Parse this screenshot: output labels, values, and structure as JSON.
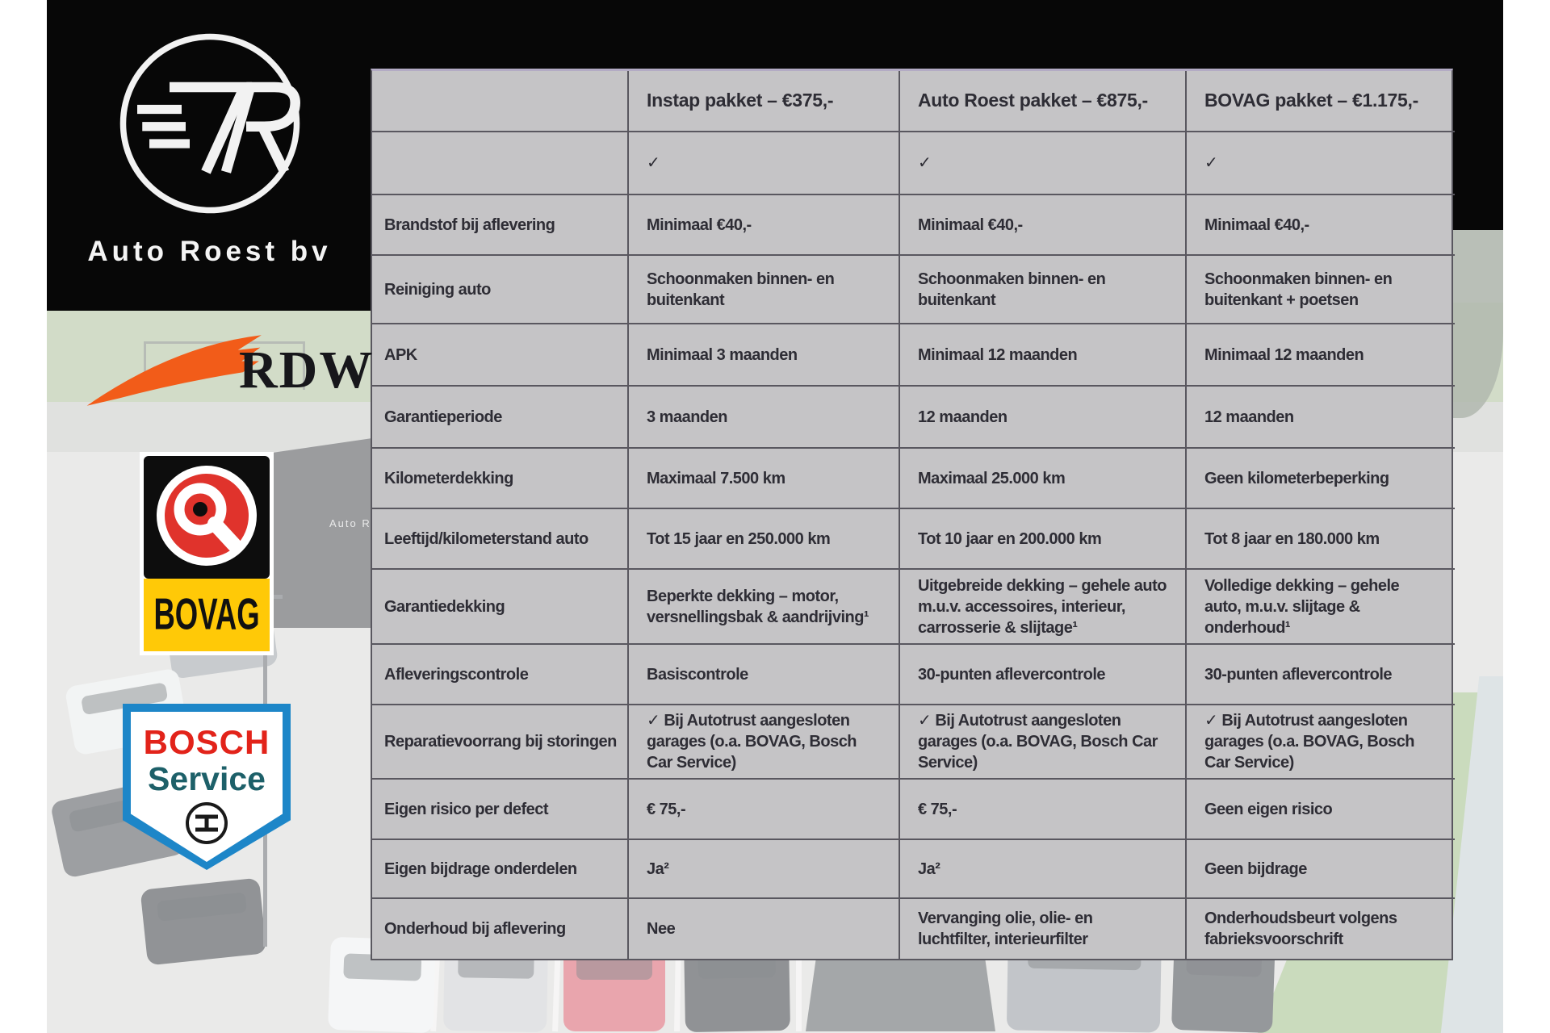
{
  "brand": {
    "name": "Auto Roest bv"
  },
  "logos": {
    "rdw": "RDW",
    "bovag": "BOVAG",
    "bosch_line1": "BOSCH",
    "bosch_line2": "Service"
  },
  "photo": {
    "building_sign": "Auto Roest"
  },
  "table": {
    "columns": [
      "",
      "Instap pakket – €375,-",
      "Auto Roest pakket – €875,-",
      "BOVAG pakket – €1.175,-"
    ],
    "rows": [
      {
        "label": "",
        "cells": [
          "✓",
          "✓",
          "✓"
        ]
      },
      {
        "label": "Brandstof bij aflevering",
        "cells": [
          "Minimaal €40,-",
          "Minimaal €40,-",
          "Minimaal €40,-"
        ]
      },
      {
        "label": "Reiniging auto",
        "cells": [
          "Schoonmaken binnen- en buitenkant",
          "Schoonmaken binnen- en buitenkant",
          "Schoonmaken binnen- en buitenkant + poetsen"
        ]
      },
      {
        "label": "APK",
        "cells": [
          "Minimaal 3 maanden",
          "Minimaal 12 maanden",
          "Minimaal 12 maanden"
        ]
      },
      {
        "label": "Garantieperiode",
        "cells": [
          "3 maanden",
          "12 maanden",
          "12 maanden"
        ]
      },
      {
        "label": "Kilometerdekking",
        "cells": [
          "Maximaal 7.500 km",
          "Maximaal 25.000 km",
          "Geen kilometerbeperking"
        ]
      },
      {
        "label": "Leeftijd/kilometerstand auto",
        "cells": [
          "Tot 15 jaar en 250.000 km",
          "Tot 10 jaar en 200.000 km",
          "Tot 8 jaar en 180.000 km"
        ]
      },
      {
        "label": "Garantiedekking",
        "cells": [
          "Beperkte dekking – motor, versnellingsbak & aandrijving¹",
          "Uitgebreide dekking – gehele auto m.u.v. accessoires, interieur, carrosserie & slijtage¹",
          "Volledige dekking – gehele auto, m.u.v. slijtage & onderhoud¹"
        ]
      },
      {
        "label": "Afleveringscontrole",
        "cells": [
          "Basiscontrole",
          "30-punten aflevercontrole",
          "30-punten aflevercontrole"
        ]
      },
      {
        "label": "Reparatievoorrang bij storingen",
        "cells": [
          "✓ Bij Autotrust aangesloten garages (o.a. BOVAG, Bosch Car Service)",
          "✓ Bij Autotrust aangesloten garages (o.a. BOVAG, Bosch Car Service)",
          "✓ Bij Autotrust aangesloten garages (o.a. BOVAG, Bosch Car Service)"
        ]
      },
      {
        "label": "Eigen risico per defect",
        "cells": [
          "€ 75,-",
          "€ 75,-",
          "Geen eigen risico"
        ]
      },
      {
        "label": "Eigen bijdrage onderdelen",
        "cells": [
          "Ja²",
          "Ja²",
          "Geen bijdrage"
        ]
      },
      {
        "label": "Onderhoud bij aflevering",
        "cells": [
          "Nee",
          "Vervanging olie, olie- en luchtfilter, interieurfilter",
          "Onderhoudsbeurt volgens fabrieksvoorschrift"
        ]
      }
    ]
  },
  "colors": {
    "table_bg": "#c5c4c6",
    "table_line": "#59575f",
    "table_top_accent": "#b3abc4",
    "text_dark": "#2e2d35",
    "panel_black": "#070707",
    "rdw_orange": "#f25c19",
    "bovag_yellow": "#ffc907",
    "bovag_red": "#e0332c",
    "bosch_blue": "#1d86c8",
    "bosch_red": "#e2231a",
    "bosch_teal": "#1d6069"
  }
}
